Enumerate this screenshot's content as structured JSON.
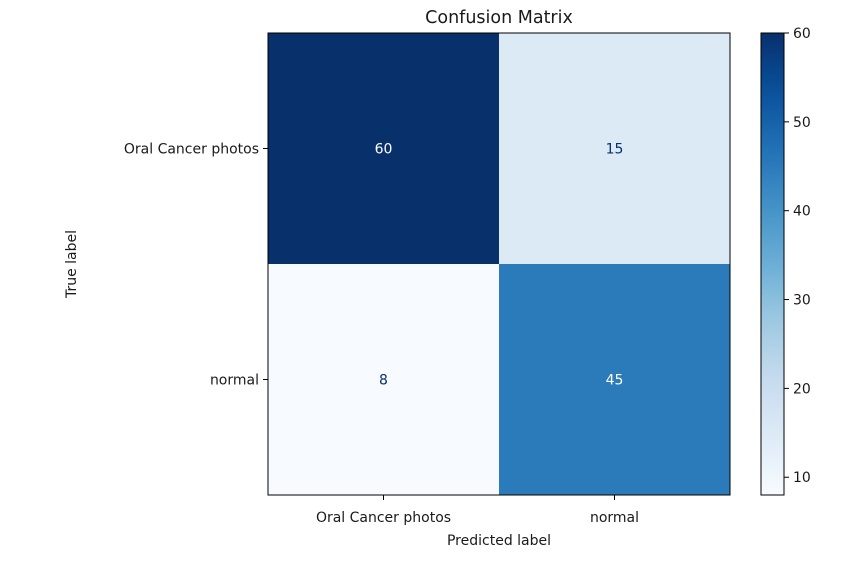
{
  "chart_data": {
    "type": "heatmap",
    "title": "Confusion Matrix",
    "xlabel": "Predicted label",
    "ylabel": "True label",
    "x_categories": [
      "Oral Cancer photos",
      "normal"
    ],
    "y_categories": [
      "Oral Cancer photos",
      "normal"
    ],
    "values": [
      [
        60,
        15
      ],
      [
        8,
        45
      ]
    ],
    "colormap": "Blues",
    "colorbar": {
      "min": 8,
      "max": 60,
      "ticks": [
        10,
        20,
        30,
        40,
        50,
        60
      ]
    },
    "grid": false
  }
}
